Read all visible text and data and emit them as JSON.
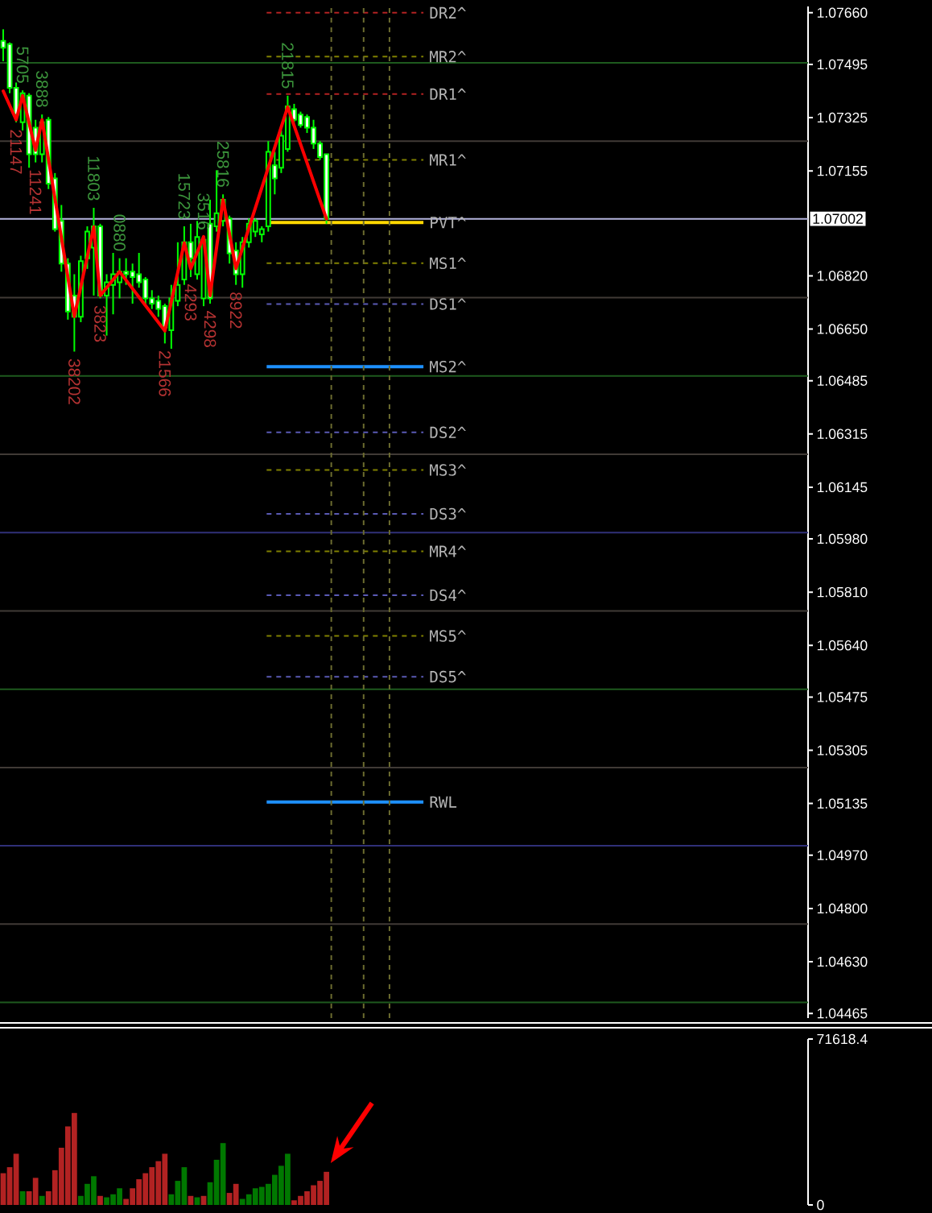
{
  "chart_data": [
    {
      "type": "candlestick",
      "categories": [
        null,
        null,
        null,
        null,
        null,
        null,
        null,
        null,
        null,
        null,
        null,
        null,
        null,
        null,
        null,
        null,
        null,
        null,
        null,
        null,
        null,
        null,
        null,
        null,
        null,
        null,
        null,
        null,
        null,
        null,
        null,
        null,
        null,
        null,
        null,
        null,
        null,
        null,
        null,
        null,
        null,
        null,
        null,
        null,
        null,
        null,
        null,
        null,
        null,
        null,
        null,
        null,
        null,
        null,
        null,
        null,
        null,
        null,
        null,
        null,
        null,
        null,
        null,
        null,
        null,
        null,
        null,
        null,
        null,
        null,
        null,
        null,
        null,
        null,
        null,
        null,
        null,
        null,
        null,
        null,
        null,
        null,
        null,
        null,
        null,
        null,
        null,
        null,
        null,
        null,
        null,
        null,
        null,
        null,
        null,
        null,
        null,
        null,
        null,
        null,
        null,
        null,
        null,
        null,
        null,
        null,
        null,
        null,
        null,
        null,
        null,
        null,
        null,
        null,
        null,
        null,
        null,
        null,
        null,
        null,
        null,
        null,
        null,
        null,
        null
      ],
      "ohlc": [
        [
          1.0757,
          1.07607,
          1.07505,
          1.07548
        ],
        [
          1.0756,
          1.07565,
          1.07403,
          1.0742
        ],
        [
          1.0742,
          1.07437,
          1.0731,
          1.07335
        ],
        [
          1.0731,
          1.07412,
          1.07284,
          1.07403
        ],
        [
          1.07395,
          1.07403,
          1.07165,
          1.07208
        ],
        [
          1.07293,
          1.07318,
          1.07182,
          1.07208
        ],
        [
          1.07208,
          1.07335,
          1.07182,
          1.0731
        ],
        [
          1.07318,
          1.07327,
          1.07097,
          1.07114
        ],
        [
          1.07131,
          1.07148,
          1.06961,
          1.06969
        ],
        [
          1.06995,
          1.07046,
          1.06833,
          1.06859
        ],
        [
          1.06859,
          1.06876,
          1.0668,
          1.06706
        ],
        [
          1.06757,
          1.06825,
          1.06578,
          1.06689
        ],
        [
          1.06689,
          1.06884,
          1.06672,
          1.06867
        ],
        [
          1.06876,
          1.06978,
          1.06842,
          1.06961
        ],
        [
          1.0691,
          1.07037,
          1.06757,
          1.06978
        ],
        [
          1.06978,
          1.06986,
          1.06748,
          1.06757
        ],
        [
          1.06757,
          1.06825,
          1.06629,
          1.06799
        ],
        [
          1.06791,
          1.06893,
          1.06697,
          1.06825
        ],
        [
          1.06799,
          1.06876,
          1.06748,
          1.06833
        ],
        [
          1.06833,
          1.06876,
          1.06791,
          1.06825
        ],
        [
          1.06833,
          1.06859,
          1.06731,
          1.06816
        ],
        [
          1.06825,
          1.06893,
          1.06782,
          1.06799
        ],
        [
          1.06808,
          1.06816,
          1.06723,
          1.06748
        ],
        [
          1.06748,
          1.06774,
          1.06714,
          1.06731
        ],
        [
          1.0674,
          1.06757,
          1.06689,
          1.06714
        ],
        [
          1.06723,
          1.06731,
          1.06604,
          1.06655
        ],
        [
          1.06646,
          1.06791,
          1.06587,
          1.06748
        ],
        [
          1.0674,
          1.06927,
          1.06723,
          1.06791
        ],
        [
          1.06808,
          1.06978,
          1.06791,
          1.06927
        ],
        [
          1.06927,
          1.06986,
          1.06816,
          1.06876
        ],
        [
          1.06825,
          1.06995,
          1.06808,
          1.06944
        ],
        [
          1.06748,
          1.06944,
          1.06723,
          1.06935
        ],
        [
          1.06986,
          1.07063,
          1.06731,
          1.06748
        ],
        [
          1.06978,
          1.07157,
          1.06961,
          1.0702
        ],
        [
          1.06995,
          1.0708,
          1.06978,
          1.07063
        ],
        [
          1.07003,
          1.07012,
          1.06859,
          1.06892
        ],
        [
          1.06901,
          1.06927,
          1.06791,
          1.06825
        ],
        [
          1.06825,
          1.06944,
          1.06782,
          1.06927
        ],
        [
          1.06927,
          1.07003,
          1.0691,
          1.06986
        ],
        [
          1.06961,
          1.07003,
          1.06944,
          1.06995
        ],
        [
          1.06952,
          1.06978,
          1.06927,
          1.06969
        ],
        [
          1.06978,
          1.0725,
          1.06961,
          1.07216
        ],
        [
          1.07173,
          1.07216,
          1.0708,
          1.07131
        ],
        [
          1.07165,
          1.07284,
          1.07148,
          1.07267
        ],
        [
          1.07225,
          1.07395,
          1.07216,
          1.07361
        ],
        [
          1.07352,
          1.07369,
          1.0731,
          1.07318
        ],
        [
          1.07335,
          1.07344,
          1.07293,
          1.07301
        ],
        [
          1.07327,
          1.07335,
          1.07276,
          1.07293
        ],
        [
          1.07293,
          1.07318,
          1.07225,
          1.07242
        ],
        [
          1.07242,
          1.0725,
          1.0719,
          1.07199
        ],
        [
          1.07208,
          1.07208,
          1.06986,
          1.07002
        ],
        null,
        null,
        null,
        null,
        null,
        null,
        null,
        null,
        null,
        null,
        null,
        null,
        null,
        null,
        null,
        null,
        null,
        null,
        null,
        null,
        null,
        null,
        null,
        null,
        null,
        null,
        null,
        null,
        null,
        null,
        null,
        null,
        null,
        null,
        null,
        null,
        null,
        null,
        null,
        null,
        null,
        null,
        null,
        null,
        null,
        null,
        null,
        null,
        null,
        null,
        null,
        null,
        null,
        null,
        null,
        null,
        null,
        null,
        null,
        null,
        null,
        null,
        null,
        null,
        null,
        null,
        null,
        null,
        null,
        null,
        null,
        null,
        null,
        null
      ],
      "color": "#00ff00",
      "series": [
        {
          "type": "line",
          "color": "#ff0000",
          "values": [
            1.0741,
            null,
            1.07318,
            1.07395,
            null,
            1.07221,
            1.07318,
            null,
            null,
            null,
            null,
            1.0669,
            null,
            null,
            1.06976,
            1.06757,
            null,
            null,
            1.06833,
            null,
            null,
            null,
            null,
            null,
            null,
            1.06644,
            null,
            null,
            1.06925,
            1.06843,
            null,
            1.06945,
            1.06757,
            null,
            1.07063,
            null,
            1.06843,
            null,
            null,
            null,
            null,
            null,
            null,
            null,
            1.07359,
            null,
            null,
            null,
            null,
            null,
            1.07002,
            null,
            null,
            null,
            null,
            null,
            null,
            null,
            null,
            null,
            null,
            null,
            null,
            null,
            null,
            null,
            null,
            null,
            null,
            null,
            null,
            null,
            null,
            null,
            null,
            null,
            null,
            null,
            null,
            null,
            null,
            null,
            null,
            null,
            null,
            null,
            null,
            null,
            null,
            null,
            null,
            null,
            null,
            null,
            null,
            null,
            null,
            null,
            null,
            null,
            null,
            null,
            null,
            null,
            null,
            null,
            null,
            null,
            null,
            null,
            null,
            null,
            null,
            null,
            null,
            null,
            null,
            null,
            null,
            null,
            null,
            null,
            null,
            null,
            null
          ]
        }
      ],
      "annotations": [
        {
          "text": "21147",
          "y": 1.07318
        },
        {
          "text": "5705",
          "y": 1.07395
        },
        {
          "text": "11241",
          "y": 1.07221
        },
        {
          "text": "3888",
          "y": 1.07318
        },
        {
          "text": "38202",
          "y": 1.0669
        },
        {
          "text": "11803",
          "y": 1.06976
        },
        {
          "text": "3823",
          "y": 1.06757
        },
        {
          "text": "0880",
          "y": 1.06833
        },
        {
          "text": "21566",
          "y": 1.06644
        },
        {
          "text": "15723",
          "y": 1.06925
        },
        {
          "text": "4293",
          "y": 1.06843
        },
        {
          "text": "3516",
          "y": 1.06945
        },
        {
          "text": "4298",
          "y": 1.06757
        },
        {
          "text": "25816",
          "y": 1.07063
        },
        {
          "text": "8922",
          "y": 1.06843
        },
        {
          "text": "21815",
          "y": 1.07359
        }
      ],
      "ylim": [
        1.0445,
        1.0768
      ],
      "yticks": [
        {
          "value": 1.0766,
          "label": "1.07660"
        },
        1.07495,
        1.07325,
        1.07155,
        {
          "value": 1.0682,
          "label": "1.06820"
        },
        {
          "value": 1.0665,
          "label": "1.06650"
        },
        1.06485,
        1.06315,
        1.06145,
        {
          "value": 1.0598,
          "label": "1.05980"
        },
        {
          "value": 1.0581,
          "label": "1.05810"
        },
        {
          "value": 1.0564,
          "label": "1.05640"
        },
        1.05475,
        1.05305,
        1.05135,
        {
          "value": 1.0497,
          "label": "1.04970"
        },
        {
          "value": 1.048,
          "label": "1.04800"
        },
        {
          "value": 1.0463,
          "label": "1.04630"
        },
        1.04465
      ],
      "tick_labels": "y",
      "ref_lines": [
        {
          "axis": "y",
          "value": 1.075,
          "color": "#1e5a1e"
        },
        {
          "axis": "y",
          "value": 1.0725,
          "color": "#403a36"
        },
        {
          "axis": "y",
          "value": 1.0675,
          "color": "#403a36"
        },
        {
          "axis": "y",
          "value": 1.065,
          "color": "#1e5a1e"
        },
        {
          "axis": "y",
          "value": 1.0625,
          "color": "#403a36"
        },
        {
          "axis": "y",
          "value": 1.06,
          "color": "#303078"
        },
        {
          "axis": "y",
          "value": 1.0575,
          "color": "#403a36"
        },
        {
          "axis": "y",
          "value": 1.055,
          "color": "#1e5a1e"
        },
        {
          "axis": "y",
          "value": 1.0525,
          "color": "#403a36"
        },
        {
          "axis": "y",
          "value": 1.05,
          "color": "#303078"
        },
        {
          "axis": "y",
          "value": 1.0475,
          "color": "#403a36"
        },
        {
          "axis": "y",
          "value": 1.045,
          "color": "#1e5a1e"
        },
        {
          "axis": "y",
          "value": 1.07002,
          "label": "1.07002",
          "color": "#b4b4dc"
        },
        {
          "axis": "y",
          "value": 1.0766,
          "label": "DR2^",
          "color": "#b22222",
          "line_style": "dashed"
        },
        {
          "axis": "y",
          "value": 1.0752,
          "label": "MR2^",
          "color": "#808000",
          "line_style": "dashed"
        },
        {
          "axis": "y",
          "value": 1.074,
          "label": "DR1^",
          "color": "#b22222",
          "line_style": "dashed"
        },
        {
          "axis": "y",
          "value": 1.0719,
          "label": "MR1^",
          "color": "#808000",
          "line_style": "dashed"
        },
        {
          "axis": "y",
          "value": 1.0699,
          "label": "PVT^",
          "color": "#ffd700",
          "line_style": "solid"
        },
        {
          "axis": "y",
          "value": 1.0686,
          "label": "MS1^",
          "color": "#808000",
          "line_style": "dashed"
        },
        {
          "axis": "y",
          "value": 1.0673,
          "label": "DS1^",
          "color": "#5a5ab4",
          "line_style": "dashed"
        },
        {
          "axis": "y",
          "value": 1.0653,
          "label": "MS2^",
          "color": "#1e90ff",
          "line_style": "solid"
        },
        {
          "axis": "y",
          "value": 1.0632,
          "label": "DS2^",
          "color": "#5a5ab4",
          "line_style": "dashed"
        },
        {
          "axis": "y",
          "value": 1.062,
          "label": "MS3^",
          "color": "#808000",
          "line_style": "dashed"
        },
        {
          "axis": "y",
          "value": 1.0606,
          "label": "DS3^",
          "color": "#5a5ab4",
          "line_style": "dashed"
        },
        {
          "axis": "y",
          "value": 1.0594,
          "label": "MR4^",
          "color": "#808000",
          "line_style": "dashed"
        },
        {
          "axis": "y",
          "value": 1.058,
          "label": "DS4^",
          "color": "#5a5ab4",
          "line_style": "dashed"
        },
        {
          "axis": "y",
          "value": 1.0567,
          "label": "MS5^",
          "color": "#808000",
          "line_style": "dashed"
        },
        {
          "axis": "y",
          "value": 1.0554,
          "label": "DS5^",
          "color": "#5a5ab4",
          "line_style": "dashed"
        },
        {
          "axis": "y",
          "value": 1.0514,
          "label": "RWL",
          "color": "#1e90ff",
          "line_style": "solid"
        }
      ]
    },
    {
      "type": "bar",
      "categories": [
        null,
        null,
        null,
        null,
        null,
        null,
        null,
        null,
        null,
        null,
        null,
        null,
        null,
        null,
        null,
        null,
        null,
        null,
        null,
        null,
        null,
        null,
        null,
        null,
        null,
        null,
        null,
        null,
        null,
        null,
        null,
        null,
        null,
        null,
        null,
        null,
        null,
        null,
        null,
        null,
        null,
        null,
        null,
        null,
        null,
        null,
        null,
        null,
        null,
        null,
        null,
        null,
        null,
        null,
        null,
        null,
        null,
        null,
        null,
        null,
        null,
        null,
        null,
        null,
        null,
        null,
        null,
        null,
        null,
        null,
        null,
        null,
        null,
        null,
        null,
        null,
        null,
        null,
        null,
        null,
        null,
        null,
        null,
        null,
        null,
        null,
        null,
        null,
        null,
        null,
        null,
        null,
        null,
        null,
        null,
        null,
        null,
        null,
        null,
        null,
        null,
        null,
        null,
        null,
        null,
        null,
        null,
        null,
        null,
        null,
        null,
        null,
        null,
        null,
        null,
        null,
        null,
        null,
        null,
        null,
        null,
        null,
        null,
        null,
        null
      ],
      "values": [
        13700,
        16300,
        22100,
        5900,
        5900,
        11700,
        3900,
        5900,
        15000,
        24700,
        33900,
        39700,
        3900,
        9100,
        12400,
        3900,
        3300,
        4600,
        7200,
        2600,
        7200,
        11100,
        13700,
        16300,
        18900,
        22100,
        4600,
        10400,
        16300,
        3900,
        3300,
        3900,
        9800,
        19500,
        26700,
        5200,
        9100,
        2600,
        4600,
        7200,
        7800,
        9100,
        13000,
        16900,
        22100,
        2000,
        3900,
        5900,
        8500,
        10400,
        14300,
        null,
        null,
        null,
        null,
        null,
        null,
        null,
        null,
        null,
        null,
        null,
        null,
        null,
        null,
        null,
        null,
        null,
        null,
        null,
        null,
        null,
        null,
        null,
        null,
        null,
        null,
        null,
        null,
        null,
        null,
        null,
        null,
        null,
        null,
        null,
        null,
        null,
        null,
        null,
        null,
        null,
        null,
        null,
        null,
        null,
        null,
        null,
        null,
        null,
        null,
        null,
        null,
        null,
        null,
        null,
        null,
        null,
        null,
        null,
        null,
        null,
        null,
        null,
        null,
        null,
        null,
        null,
        null,
        null,
        null,
        null,
        null,
        null,
        null
      ],
      "colors": [
        "#b22222",
        "#b22222",
        "#b22222",
        "#007800",
        "#b22222",
        "#b22222",
        "#007800",
        "#b22222",
        "#b22222",
        "#b22222",
        "#b22222",
        "#b22222",
        "#007800",
        "#007800",
        "#007800",
        "#b22222",
        "#007800",
        "#007800",
        "#007800",
        "#b22222",
        "#b22222",
        "#b22222",
        "#b22222",
        "#b22222",
        "#b22222",
        "#b22222",
        "#007800",
        "#007800",
        "#007800",
        "#b22222",
        "#007800",
        "#b22222",
        "#007800",
        "#007800",
        "#007800",
        "#b22222",
        "#b22222",
        "#007800",
        "#007800",
        "#007800",
        "#007800",
        "#007800",
        "#007800",
        "#007800",
        "#007800",
        "#b22222",
        "#b22222",
        "#b22222",
        "#b22222",
        "#b22222",
        "#b22222",
        null,
        null,
        null,
        null,
        null,
        null,
        null,
        null,
        null,
        null,
        null,
        null,
        null,
        null,
        null,
        null,
        null,
        null,
        null,
        null,
        null,
        null,
        null,
        null,
        null,
        null,
        null,
        null,
        null,
        null,
        null,
        null,
        null,
        null,
        null,
        null,
        null,
        null,
        null,
        null,
        null,
        null,
        null,
        null,
        null,
        null,
        null,
        null,
        null,
        null,
        null,
        null,
        null,
        null,
        null,
        null,
        null,
        null,
        null,
        null,
        null,
        null,
        null,
        null,
        null,
        null,
        null,
        null,
        null,
        null,
        null,
        null,
        null,
        null
      ],
      "ylim": [
        0,
        71618.4
      ],
      "yticks": [
        0,
        71618.4
      ],
      "tick_labels": "y"
    }
  ]
}
